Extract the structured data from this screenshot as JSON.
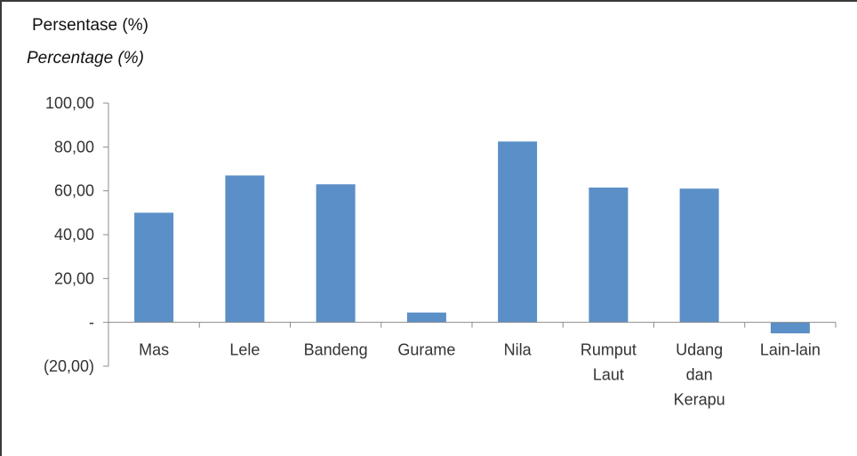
{
  "chart_data": {
    "type": "bar",
    "ylabel": "Persentase (%)",
    "ylabel_en": "Percentage (%)",
    "categories": [
      [
        "Mas"
      ],
      [
        "Lele"
      ],
      [
        "Bandeng"
      ],
      [
        "Gurame"
      ],
      [
        "Nila"
      ],
      [
        "Rumput",
        "Laut"
      ],
      [
        "Udang",
        "dan",
        "Kerapu"
      ],
      [
        "Lain-lain"
      ]
    ],
    "values": [
      50.0,
      67.0,
      63.0,
      4.5,
      82.5,
      61.5,
      61.0,
      -5.0
    ],
    "ylim": [
      -20,
      100
    ],
    "yticks": [
      100,
      80,
      60,
      40,
      20,
      0,
      -20
    ],
    "ytick_labels": [
      "100,00",
      "80,00",
      "60,00",
      "40,00",
      "20,00",
      "-",
      "(20,00)"
    ],
    "grid": false,
    "bar_color": "#5b8fc7"
  }
}
